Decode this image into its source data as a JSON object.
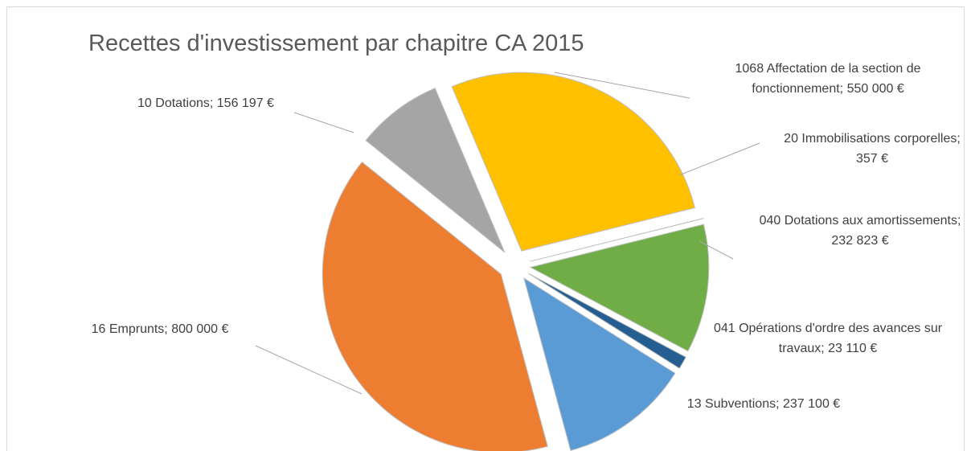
{
  "chart_data": {
    "type": "pie",
    "title": "Recettes d'investissement par chapitre CA 2015",
    "categories": [
      "1068 Affectation de la section de fonctionnement;",
      "20 Immobilisations corporelles;",
      "040 Dotations aux amortissements;",
      "041 Opérations d'ordre des avances sur travaux;",
      "13 Subventions;",
      "16 Emprunts;",
      "10 Dotations;"
    ],
    "values": [
      550000,
      357,
      232823,
      23110,
      237100,
      800000,
      156197
    ],
    "value_labels": [
      "550 000 €",
      "357 €",
      "232 823 €",
      "23 110 €",
      "237 100 €",
      "800 000 €",
      "156 197 €"
    ],
    "colors": [
      "#ffc000",
      "#c5e0b4",
      "#70ad47",
      "#255e91",
      "#5b9bd5",
      "#ed7d31",
      "#a5a5a5"
    ]
  }
}
